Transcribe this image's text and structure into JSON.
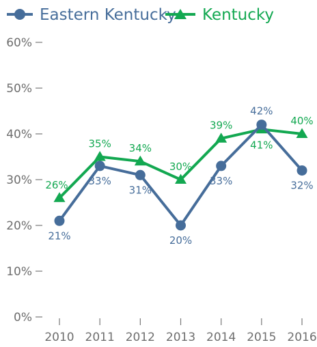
{
  "chart_data": {
    "type": "line",
    "title": "",
    "xlabel": "",
    "ylabel": "",
    "x": [
      "2010",
      "2011",
      "2012",
      "2013",
      "2014",
      "2015",
      "2016"
    ],
    "ylim": [
      0,
      60
    ],
    "yticks": [
      0,
      10,
      20,
      30,
      40,
      50,
      60
    ],
    "ytick_labels": [
      "0%",
      "10%",
      "20%",
      "30%",
      "40%",
      "50%",
      "60%"
    ],
    "grid": false,
    "legend_position": "top-left",
    "series": [
      {
        "name": "Eastern Kentucky",
        "color": "#466d9a",
        "marker": "circle",
        "values": [
          21,
          33,
          31,
          20,
          33,
          42,
          32
        ],
        "labels": [
          "21%",
          "33%",
          "31%",
          "20%",
          "33%",
          "42%",
          "32%"
        ]
      },
      {
        "name": "Kentucky",
        "color": "#13a851",
        "marker": "triangle",
        "values": [
          26,
          35,
          34,
          30,
          39,
          41,
          40
        ],
        "labels": [
          "26%",
          "35%",
          "34%",
          "30%",
          "39%",
          "41%",
          "40%"
        ]
      }
    ],
    "axis_color": "#777777",
    "tick_label_color": "#6d6d6d"
  }
}
